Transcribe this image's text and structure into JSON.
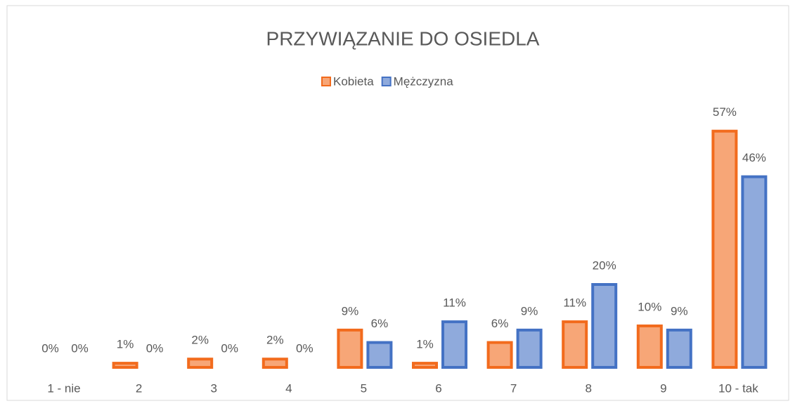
{
  "chart_data": {
    "type": "bar",
    "title": "PRZYWIĄZANIE DO OSIEDLA",
    "categories": [
      "1 - nie",
      "2",
      "3",
      "4",
      "5",
      "6",
      "7",
      "8",
      "9",
      "10 - tak"
    ],
    "series": [
      {
        "name": "Kobieta",
        "color": "#f26b1d",
        "values": [
          0,
          1,
          2,
          2,
          9,
          1,
          6,
          11,
          10,
          57
        ],
        "value_labels": [
          "0%",
          "1%",
          "2%",
          "2%",
          "9%",
          "1%",
          "6%",
          "11%",
          "10%",
          "57%"
        ]
      },
      {
        "name": "Mężczyzna",
        "color": "#4472c4",
        "values": [
          0,
          0,
          0,
          0,
          6,
          11,
          9,
          20,
          9,
          46
        ],
        "value_labels": [
          "0%",
          "0%",
          "0%",
          "0%",
          "6%",
          "11%",
          "9%",
          "20%",
          "9%",
          "46%"
        ]
      }
    ],
    "legend": "top"
  }
}
